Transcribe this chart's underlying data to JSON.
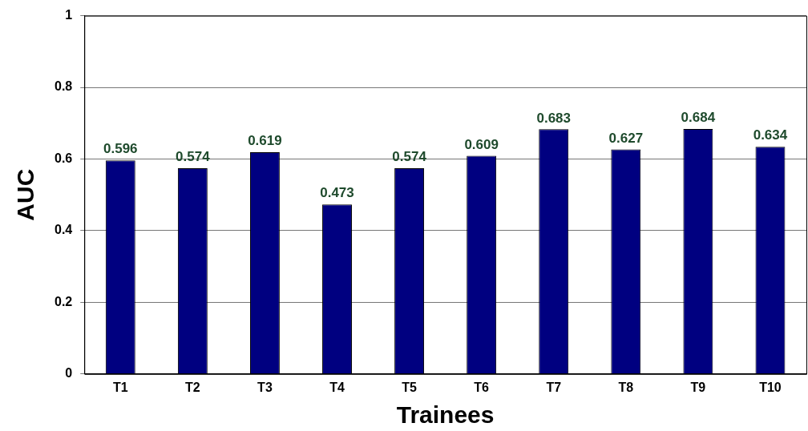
{
  "chart_data": {
    "type": "bar",
    "xlabel": "Trainees",
    "ylabel": "AUC",
    "categories": [
      "T1",
      "T2",
      "T3",
      "T4",
      "T5",
      "T6",
      "T7",
      "T8",
      "T9",
      "T10"
    ],
    "values": [
      0.596,
      0.574,
      0.619,
      0.473,
      0.574,
      0.609,
      0.683,
      0.627,
      0.684,
      0.634
    ],
    "color": "#000080",
    "ylim": [
      0,
      1
    ],
    "yticks": [
      0,
      0.2,
      0.4,
      0.6,
      0.8,
      1
    ],
    "grid": "y",
    "data_labels": true
  }
}
